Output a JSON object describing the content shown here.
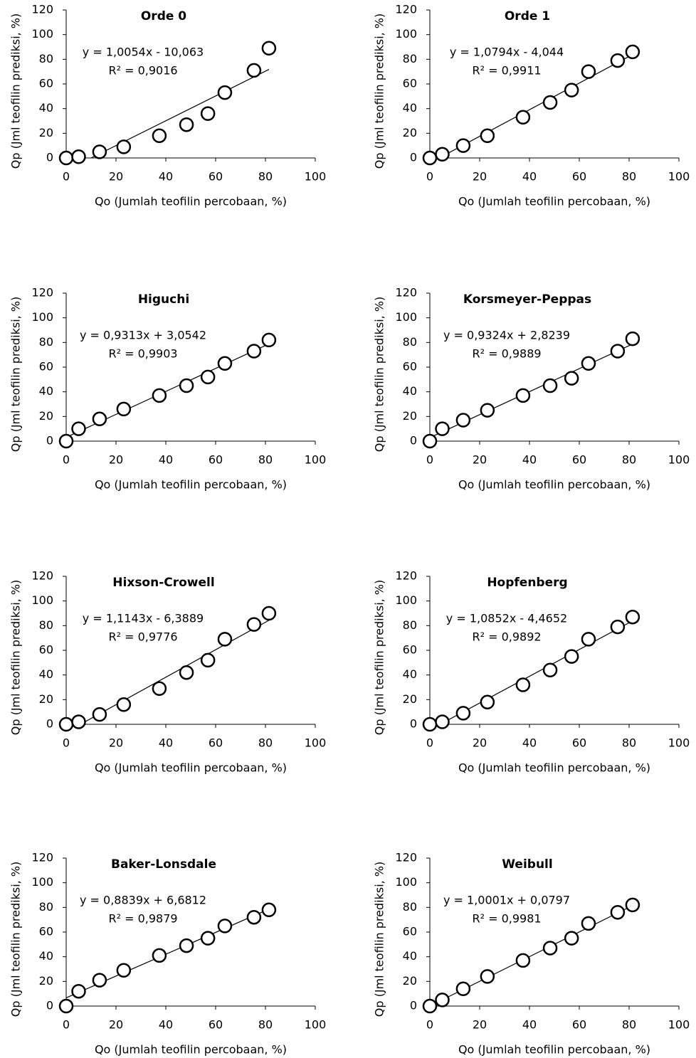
{
  "chart_data": [
    {
      "type": "scatter",
      "title": "Orde 0",
      "x_label": "Qo (Jumlah teofilin percobaan, %)",
      "y_label": "Qp (Jml teofilin prediksi, %)",
      "x": [
        0,
        5,
        13.4,
        23.1,
        37.4,
        48.3,
        56.9,
        63.7,
        75.4,
        81.4
      ],
      "y": [
        0,
        1,
        5,
        9,
        18,
        27,
        36,
        53,
        71,
        89
      ],
      "xlim": [
        0,
        100
      ],
      "ylim": [
        0,
        120
      ],
      "xticks": [
        0,
        20,
        40,
        60,
        80,
        100
      ],
      "yticks": [
        0,
        20,
        40,
        60,
        80,
        100,
        120
      ],
      "trendline": {
        "equation": "y = 1,0054x - 10,063",
        "r2": "R² = 0,9016",
        "slope": 1.0054,
        "intercept": -10.063
      }
    },
    {
      "type": "scatter",
      "title": "Orde 1",
      "x_label": "Qo (Jumlah teofilin percobaan, %)",
      "y_label": "Qp (Jml teofilin prediksi, %)",
      "x": [
        0,
        5,
        13.4,
        23.1,
        37.4,
        48.3,
        56.9,
        63.7,
        75.4,
        81.4
      ],
      "y": [
        0,
        3,
        10,
        18,
        33,
        45,
        55,
        70,
        79,
        86
      ],
      "xlim": [
        0,
        100
      ],
      "ylim": [
        0,
        120
      ],
      "xticks": [
        0,
        20,
        40,
        60,
        80,
        100
      ],
      "yticks": [
        0,
        20,
        40,
        60,
        80,
        100,
        120
      ],
      "trendline": {
        "equation": "y = 1,0794x - 4,044",
        "r2": "R² = 0,9911",
        "slope": 1.0794,
        "intercept": -4.044
      }
    },
    {
      "type": "scatter",
      "title": "Higuchi",
      "x_label": "Qo (Jumlah teofilin percobaan, %)",
      "y_label": "Qp (Jml teofilin prediksi, %)",
      "x": [
        0,
        5,
        13.4,
        23.1,
        37.4,
        48.3,
        56.9,
        63.7,
        75.4,
        81.4
      ],
      "y": [
        0,
        10,
        18,
        26,
        37,
        45,
        52,
        63,
        73,
        82
      ],
      "xlim": [
        0,
        100
      ],
      "ylim": [
        0,
        120
      ],
      "xticks": [
        0,
        20,
        40,
        60,
        80,
        100
      ],
      "yticks": [
        0,
        20,
        40,
        60,
        80,
        100,
        120
      ],
      "trendline": {
        "equation": "y = 0,9313x + 3,0542",
        "r2": "R² = 0,9903",
        "slope": 0.9313,
        "intercept": 3.0542
      }
    },
    {
      "type": "scatter",
      "title": "Korsmeyer-Peppas",
      "x_label": "Qo (Jumlah teofilin percobaan, %)",
      "y_label": "Qp (Jml teofilin prediksi, %)",
      "x": [
        0,
        5,
        13.4,
        23.1,
        37.4,
        48.3,
        56.9,
        63.7,
        75.4,
        81.4
      ],
      "y": [
        0,
        10,
        17,
        25,
        37,
        45,
        51,
        63,
        73,
        83
      ],
      "xlim": [
        0,
        100
      ],
      "ylim": [
        0,
        120
      ],
      "xticks": [
        0,
        20,
        40,
        60,
        80,
        100
      ],
      "yticks": [
        0,
        20,
        40,
        60,
        80,
        100,
        120
      ],
      "trendline": {
        "equation": "y = 0,9324x + 2,8239",
        "r2": "R² = 0,9889",
        "slope": 0.9324,
        "intercept": 2.8239
      }
    },
    {
      "type": "scatter",
      "title": "Hixson-Crowell",
      "x_label": "Qo (Jumlah teofilin percobaan, %)",
      "y_label": "Qp (Jml teofilin prediksi, %)",
      "x": [
        0,
        5,
        13.4,
        23.1,
        37.4,
        48.3,
        56.9,
        63.7,
        75.4,
        81.4
      ],
      "y": [
        0,
        2,
        8,
        16,
        29,
        42,
        52,
        69,
        81,
        90
      ],
      "xlim": [
        0,
        100
      ],
      "ylim": [
        0,
        120
      ],
      "xticks": [
        0,
        20,
        40,
        60,
        80,
        100
      ],
      "yticks": [
        0,
        20,
        40,
        60,
        80,
        100,
        120
      ],
      "trendline": {
        "equation": "y = 1,1143x - 6,3889",
        "r2": "R² = 0,9776",
        "slope": 1.1143,
        "intercept": -6.3889
      }
    },
    {
      "type": "scatter",
      "title": "Hopfenberg",
      "x_label": "Qo (Jumlah teofilin percobaan, %)",
      "y_label": "Qp (Jml teofilin prediksi, %)",
      "x": [
        0,
        5,
        13.4,
        23.1,
        37.4,
        48.3,
        56.9,
        63.7,
        75.4,
        81.4
      ],
      "y": [
        0,
        2,
        9,
        18,
        32,
        44,
        55,
        69,
        79,
        87
      ],
      "xlim": [
        0,
        100
      ],
      "ylim": [
        0,
        120
      ],
      "xticks": [
        0,
        20,
        40,
        60,
        80,
        100
      ],
      "yticks": [
        0,
        20,
        40,
        60,
        80,
        100,
        120
      ],
      "trendline": {
        "equation": "y = 1,0852x - 4,4652",
        "r2": "R² = 0,9892",
        "slope": 1.0852,
        "intercept": -4.4652
      }
    },
    {
      "type": "scatter",
      "title": "Baker-Lonsdale",
      "x_label": "Qo (Jumlah teofilin percobaan, %)",
      "y_label": "Qp (Jml teofilin prediksi, %)",
      "x": [
        0,
        5,
        13.4,
        23.1,
        37.4,
        48.3,
        56.9,
        63.7,
        75.4,
        81.4
      ],
      "y": [
        0,
        12,
        21,
        29,
        41,
        49,
        55,
        65,
        72,
        78
      ],
      "xlim": [
        0,
        100
      ],
      "ylim": [
        0,
        120
      ],
      "xticks": [
        0,
        20,
        40,
        60,
        80,
        100
      ],
      "yticks": [
        0,
        20,
        40,
        60,
        80,
        100,
        120
      ],
      "trendline": {
        "equation": "y = 0,8839x + 6,6812",
        "r2": "R² = 0,9879",
        "slope": 0.8839,
        "intercept": 6.6812
      }
    },
    {
      "type": "scatter",
      "title": "Weibull",
      "x_label": "Qo (Jumlah teofilin percobaan, %)",
      "y_label": "Qp (Jml teofilin prediksi, %)",
      "x": [
        0,
        5,
        13.4,
        23.1,
        37.4,
        48.3,
        56.9,
        63.7,
        75.4,
        81.4
      ],
      "y": [
        0,
        5,
        14,
        24,
        37,
        47,
        55,
        67,
        76,
        82
      ],
      "xlim": [
        0,
        100
      ],
      "ylim": [
        0,
        120
      ],
      "xticks": [
        0,
        20,
        40,
        60,
        80,
        100
      ],
      "yticks": [
        0,
        20,
        40,
        60,
        80,
        100,
        120
      ],
      "trendline": {
        "equation": "y = 1,0001x + 0,0797",
        "r2": "R² = 0,9981",
        "slope": 1.0001,
        "intercept": 0.0797
      }
    }
  ]
}
